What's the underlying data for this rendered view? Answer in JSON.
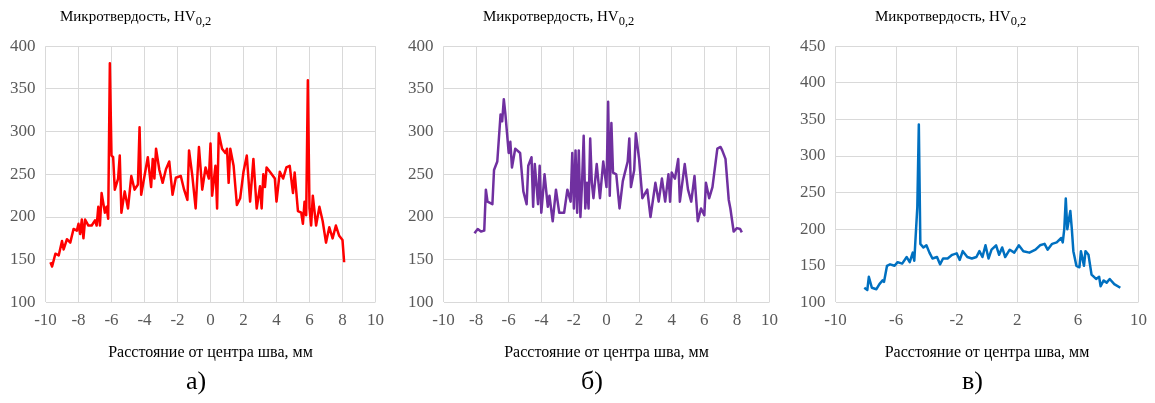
{
  "chart_data": [
    {
      "type": "line",
      "ylabel": "Микротвердость, HV$_{0,2}$",
      "xlabel": "Расстояние от центра шва, мм",
      "annotations": [
        "а)"
      ],
      "xlim": [
        -10,
        10
      ],
      "xticks": [
        -10,
        -8,
        -6,
        -4,
        -2,
        0,
        2,
        4,
        6,
        8,
        10
      ],
      "ylim": [
        100,
        400
      ],
      "yticks": [
        100,
        150,
        200,
        250,
        300,
        350,
        400
      ],
      "grid": true,
      "x": [
        -9.7,
        -9.6,
        -9.4,
        -9.2,
        -9.0,
        -8.9,
        -8.7,
        -8.5,
        -8.3,
        -8.1,
        -8.0,
        -7.9,
        -7.8,
        -7.7,
        -7.6,
        -7.4,
        -7.2,
        -7.0,
        -6.9,
        -6.8,
        -6.7,
        -6.6,
        -6.4,
        -6.3,
        -6.2,
        -6.1,
        -6.0,
        -5.9,
        -5.8,
        -5.6,
        -5.5,
        -5.4,
        -5.2,
        -5.0,
        -4.8,
        -4.6,
        -4.4,
        -4.3,
        -4.2,
        -4.0,
        -3.8,
        -3.6,
        -3.5,
        -3.4,
        -3.3,
        -3.1,
        -2.9,
        -2.7,
        -2.5,
        -2.3,
        -2.1,
        -1.8,
        -1.6,
        -1.4,
        -1.3,
        -1.1,
        -0.9,
        -0.7,
        -0.5,
        -0.3,
        -0.1,
        0.0,
        0.1,
        0.3,
        0.4,
        0.5,
        0.7,
        0.9,
        1.0,
        1.1,
        1.2,
        1.4,
        1.6,
        1.8,
        2.0,
        2.2,
        2.4,
        2.6,
        2.8,
        3.0,
        3.1,
        3.2,
        3.3,
        3.4,
        3.6,
        3.9,
        4.0,
        4.2,
        4.4,
        4.6,
        4.8,
        5.0,
        5.1,
        5.3,
        5.5,
        5.6,
        5.7,
        5.8,
        5.9,
        6.0,
        6.1,
        6.2,
        6.4,
        6.6,
        6.8,
        7.0,
        7.2,
        7.4,
        7.6,
        7.8,
        8.0,
        8.1
      ],
      "series": [
        {
          "color": "#ff0000",
          "values": [
            147,
            142,
            157,
            155,
            172,
            162,
            174,
            170,
            186,
            184,
            192,
            180,
            197,
            175,
            197,
            190,
            190,
            196,
            190,
            212,
            190,
            228,
            205,
            212,
            198,
            380,
            272,
            270,
            232,
            245,
            272,
            205,
            230,
            210,
            248,
            232,
            238,
            305,
            226,
            248,
            270,
            235,
            268,
            245,
            280,
            255,
            240,
            256,
            265,
            226,
            246,
            248,
            232,
            220,
            278,
            248,
            210,
            282,
            232,
            258,
            245,
            286,
            225,
            260,
            210,
            298,
            280,
            275,
            280,
            240,
            280,
            260,
            214,
            222,
            253,
            272,
            218,
            268,
            210,
            236,
            210,
            250,
            235,
            258,
            253,
            245,
            218,
            253,
            245,
            258,
            260,
            228,
            252,
            207,
            205,
            192,
            218,
            202,
            360,
            210,
            190,
            225,
            190,
            212,
            195,
            170,
            188,
            175,
            190,
            178,
            173,
            147
          ]
        }
      ]
    },
    {
      "type": "line",
      "ylabel": "Микротвердость, HV$_{0,2}$",
      "xlabel": "Расстояние от центра шва, мм",
      "annotations": [
        "б)"
      ],
      "xlim": [
        -10,
        10
      ],
      "xticks": [
        -10,
        -8,
        -6,
        -4,
        -2,
        0,
        2,
        4,
        6,
        8,
        10
      ],
      "ylim": [
        100,
        400
      ],
      "yticks": [
        100,
        150,
        200,
        250,
        300,
        350,
        400
      ],
      "grid": true,
      "x": [
        -8.1,
        -7.9,
        -7.7,
        -7.5,
        -7.4,
        -7.3,
        -7.0,
        -6.9,
        -6.7,
        -6.5,
        -6.4,
        -6.3,
        -6.2,
        -6.0,
        -5.9,
        -5.8,
        -5.6,
        -5.3,
        -5.1,
        -4.9,
        -4.8,
        -4.6,
        -4.5,
        -4.4,
        -4.2,
        -4.1,
        -4.0,
        -3.8,
        -3.6,
        -3.5,
        -3.3,
        -3.1,
        -2.9,
        -2.6,
        -2.4,
        -2.2,
        -2.1,
        -2.0,
        -1.9,
        -1.8,
        -1.7,
        -1.6,
        -1.5,
        -1.4,
        -1.3,
        -1.2,
        -1.1,
        -1.0,
        -0.9,
        -0.8,
        -0.6,
        -0.4,
        -0.2,
        0.0,
        0.1,
        0.2,
        0.3,
        0.4,
        0.6,
        0.8,
        1.0,
        1.3,
        1.4,
        1.5,
        1.7,
        1.8,
        2.0,
        2.2,
        2.5,
        2.7,
        3.0,
        3.2,
        3.4,
        3.6,
        3.8,
        3.9,
        4.0,
        4.2,
        4.4,
        4.5,
        4.8,
        5.0,
        5.2,
        5.4,
        5.6,
        5.8,
        6.0,
        6.1,
        6.3,
        6.5,
        6.8,
        7.0,
        7.1,
        7.3,
        7.5,
        7.6,
        7.8,
        8.0,
        8.2,
        8.3
      ],
      "series": [
        {
          "color": "#7030a0",
          "values": [
            181,
            186,
            183,
            184,
            232,
            218,
            215,
            255,
            265,
            320,
            312,
            338,
            320,
            275,
            288,
            258,
            280,
            275,
            230,
            215,
            260,
            270,
            212,
            262,
            215,
            260,
            205,
            250,
            212,
            225,
            195,
            232,
            205,
            205,
            232,
            218,
            275,
            210,
            278,
            205,
            278,
            200,
            240,
            295,
            210,
            240,
            210,
            292,
            240,
            222,
            262,
            222,
            265,
            235,
            335,
            225,
            310,
            252,
            250,
            210,
            242,
            265,
            292,
            235,
            255,
            298,
            268,
            222,
            232,
            200,
            240,
            218,
            245,
            218,
            250,
            218,
            252,
            245,
            268,
            218,
            262,
            232,
            218,
            248,
            195,
            210,
            202,
            240,
            222,
            235,
            280,
            282,
            278,
            268,
            220,
            210,
            183,
            187,
            186,
            182
          ]
        }
      ]
    },
    {
      "type": "line",
      "ylabel": "Микротвердость, HV$_{0,2}$",
      "xlabel": "Расстояние от центра шва, мм",
      "annotations": [
        "в)"
      ],
      "xlim": [
        -10,
        10
      ],
      "xticks": [
        -10,
        -6,
        -2,
        2,
        6,
        10
      ],
      "ylim": [
        100,
        450
      ],
      "yticks": [
        100,
        150,
        200,
        250,
        300,
        350,
        400,
        450
      ],
      "grid": true,
      "x": [
        -8.1,
        -7.9,
        -7.8,
        -7.6,
        -7.3,
        -7.1,
        -6.9,
        -6.8,
        -6.6,
        -6.4,
        -6.1,
        -5.9,
        -5.6,
        -5.3,
        -5.1,
        -4.9,
        -4.8,
        -4.6,
        -4.5,
        -4.4,
        -4.2,
        -4.0,
        -3.8,
        -3.6,
        -3.3,
        -3.1,
        -2.9,
        -2.6,
        -2.3,
        -2.0,
        -1.8,
        -1.6,
        -1.3,
        -1.0,
        -0.7,
        -0.5,
        -0.3,
        -0.1,
        0.1,
        0.3,
        0.6,
        0.8,
        1.0,
        1.2,
        1.5,
        1.8,
        2.1,
        2.4,
        2.8,
        3.2,
        3.5,
        3.8,
        4.0,
        4.3,
        4.6,
        4.9,
        5.0,
        5.1,
        5.2,
        5.3,
        5.5,
        5.6,
        5.7,
        5.9,
        6.1,
        6.2,
        6.4,
        6.5,
        6.7,
        6.9,
        7.2,
        7.4,
        7.5,
        7.7,
        7.9,
        8.1,
        8.4,
        8.8
      ],
      "series": [
        {
          "color": "#0070c0",
          "values": [
            120,
            117,
            135,
            120,
            118,
            125,
            130,
            128,
            150,
            152,
            150,
            155,
            153,
            162,
            155,
            168,
            157,
            230,
            343,
            180,
            175,
            178,
            168,
            160,
            162,
            152,
            160,
            160,
            165,
            167,
            158,
            170,
            162,
            160,
            162,
            170,
            162,
            178,
            160,
            172,
            178,
            165,
            175,
            162,
            172,
            168,
            178,
            170,
            168,
            172,
            178,
            180,
            172,
            180,
            182,
            188,
            182,
            200,
            242,
            200,
            225,
            200,
            170,
            150,
            148,
            170,
            150,
            170,
            165,
            138,
            132,
            135,
            122,
            130,
            127,
            132,
            125,
            120
          ]
        }
      ]
    }
  ]
}
